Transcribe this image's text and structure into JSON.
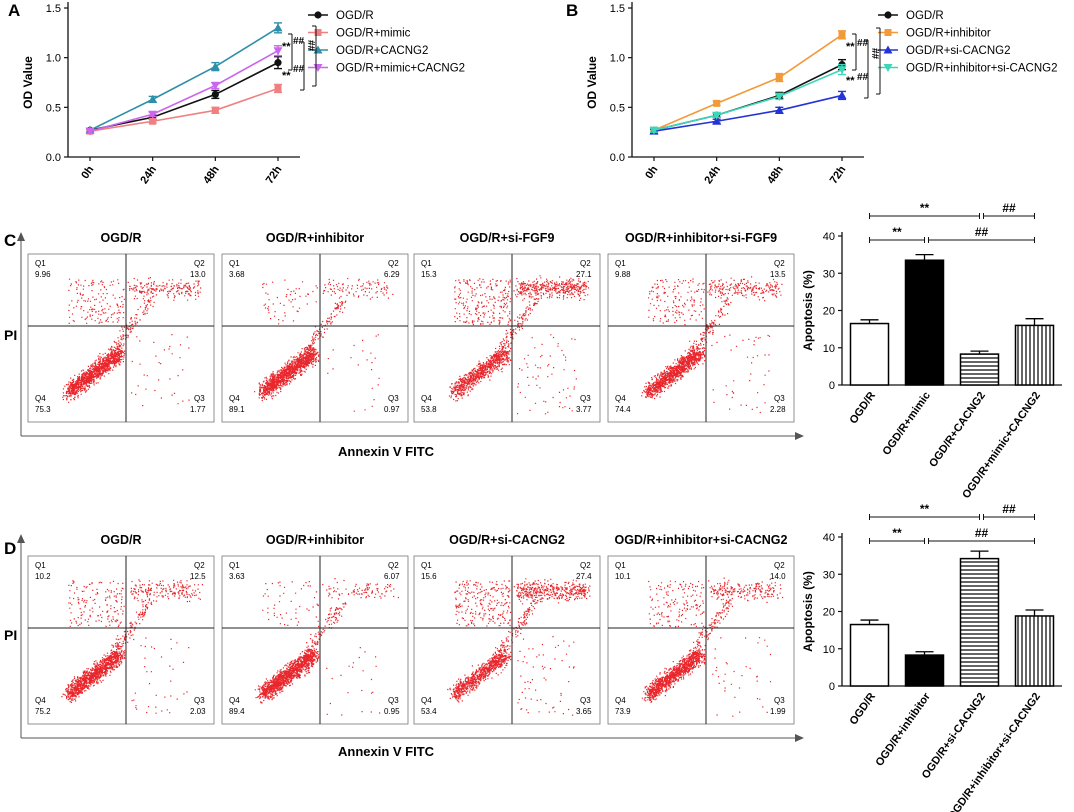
{
  "panel_letters": {
    "a": "A",
    "b": "B",
    "c": "C",
    "d": "D"
  },
  "flow_axes": {
    "pi": "PI",
    "annexin": "Annexin V  FITC"
  },
  "stats_marks": {
    "star2": "**",
    "hash2": "##"
  },
  "colors": {
    "dots": "#e8262b",
    "black": "#111111",
    "teal": "#2e8fa8",
    "salmon": "#f08080",
    "violet": "#cc66ee",
    "orange": "#f39a38",
    "blue": "#2433d6",
    "aqua": "#3dd6b8"
  },
  "chart_data": [
    {
      "id": "A",
      "type": "line",
      "ylabel": "OD Value",
      "ylim": [
        0.0,
        1.5
      ],
      "yticks": [
        "0.0",
        "0.5",
        "1.0",
        "1.5"
      ],
      "categories": [
        "0h",
        "24h",
        "48h",
        "72h"
      ],
      "series": [
        {
          "name": "OGD/R",
          "color": "#111111",
          "marker": "circle",
          "values": [
            0.27,
            0.4,
            0.63,
            0.95
          ],
          "err": [
            0.02,
            0.02,
            0.04,
            0.06
          ]
        },
        {
          "name": "OGD/R+mimic",
          "color": "#f08080",
          "marker": "square",
          "values": [
            0.26,
            0.36,
            0.47,
            0.69
          ],
          "err": [
            0.02,
            0.02,
            0.03,
            0.04
          ]
        },
        {
          "name": "OGD/R+CACNG2",
          "color": "#2e8fa8",
          "marker": "triangle",
          "values": [
            0.27,
            0.58,
            0.91,
            1.3
          ],
          "err": [
            0.02,
            0.03,
            0.04,
            0.05
          ]
        },
        {
          "name": "OGD/R+mimic+CACNG2",
          "color": "#cc66ee",
          "marker": "triangle-down",
          "values": [
            0.26,
            0.43,
            0.72,
            1.07
          ],
          "err": [
            0.02,
            0.02,
            0.03,
            0.05
          ]
        }
      ],
      "annotations": [
        "**",
        "**",
        "##",
        "##",
        "##"
      ]
    },
    {
      "id": "B",
      "type": "line",
      "ylabel": "OD Value",
      "ylim": [
        0.0,
        1.5
      ],
      "yticks": [
        "0.0",
        "0.5",
        "1.0",
        "1.5"
      ],
      "categories": [
        "0h",
        "24h",
        "48h",
        "72h"
      ],
      "series": [
        {
          "name": "OGD/R",
          "color": "#111111",
          "marker": "circle",
          "values": [
            0.27,
            0.42,
            0.62,
            0.93
          ],
          "err": [
            0.02,
            0.02,
            0.03,
            0.05
          ]
        },
        {
          "name": "OGD/R+inhibitor",
          "color": "#f39a38",
          "marker": "square",
          "values": [
            0.27,
            0.54,
            0.8,
            1.23
          ],
          "err": [
            0.02,
            0.02,
            0.04,
            0.04
          ]
        },
        {
          "name": "OGD/R+si-CACNG2",
          "color": "#2433d6",
          "marker": "triangle",
          "values": [
            0.26,
            0.36,
            0.47,
            0.62
          ],
          "err": [
            0.02,
            0.02,
            0.03,
            0.04
          ]
        },
        {
          "name": "OGD/R+inhibitor+si-CACNG2",
          "color": "#3dd6b8",
          "marker": "triangle-down",
          "values": [
            0.27,
            0.42,
            0.61,
            0.88
          ],
          "err": [
            0.02,
            0.02,
            0.03,
            0.05
          ]
        }
      ],
      "annotations": [
        "**",
        "**",
        "##",
        "##",
        "##"
      ]
    },
    {
      "id": "C-flow",
      "type": "scatter",
      "plots": [
        {
          "title": "OGD/R",
          "q1": "9.96",
          "q2": "13.0",
          "q3": "1.77",
          "q4": "75.3"
        },
        {
          "title": "OGD/R+inhibitor",
          "q1": "3.68",
          "q2": "6.29",
          "q3": "0.97",
          "q4": "89.1"
        },
        {
          "title": "OGD/R+si-FGF9",
          "q1": "15.3",
          "q2": "27.1",
          "q3": "3.77",
          "q4": "53.8"
        },
        {
          "title": "OGD/R+inhibitor+si-FGF9",
          "q1": "9.88",
          "q2": "13.5",
          "q3": "2.28",
          "q4": "74.4"
        }
      ],
      "ylabel": "PI",
      "xlabel": "Annexin V  FITC"
    },
    {
      "id": "C-bar",
      "type": "bar",
      "ylabel": "Apoptosis (%)",
      "ylim": [
        0,
        40
      ],
      "yticks": [
        "0",
        "10",
        "20",
        "30",
        "40"
      ],
      "categories": [
        "OGD/R",
        "OGD/R+mimic",
        "OGD/R+CACNG2",
        "OGD/R+mimic+CACNG2"
      ],
      "values": [
        16.5,
        33.5,
        8.3,
        16.0
      ],
      "err": [
        1.0,
        1.5,
        0.8,
        1.8
      ],
      "fills": [
        "open",
        "solid",
        "hlines",
        "vlines"
      ],
      "brackets": [
        {
          "from": 0,
          "to": 2,
          "label": "**",
          "row": 1
        },
        {
          "from": 2,
          "to": 3,
          "label": "##",
          "row": 1
        },
        {
          "from": 0,
          "to": 1,
          "label": "**",
          "row": 2
        },
        {
          "from": 1,
          "to": 3,
          "label": "##",
          "row": 2
        }
      ]
    },
    {
      "id": "D-flow",
      "type": "scatter",
      "plots": [
        {
          "title": "OGD/R",
          "q1": "10.2",
          "q2": "12.5",
          "q3": "2.03",
          "q4": "75.2"
        },
        {
          "title": "OGD/R+inhibitor",
          "q1": "3.63",
          "q2": "6.07",
          "q3": "0.95",
          "q4": "89.4"
        },
        {
          "title": "OGD/R+si-CACNG2",
          "q1": "15.6",
          "q2": "27.4",
          "q3": "3.65",
          "q4": "53.4"
        },
        {
          "title": "OGD/R+inhibitor+si-CACNG2",
          "q1": "10.1",
          "q2": "14.0",
          "q3": "1.99",
          "q4": "73.9"
        }
      ],
      "ylabel": "PI",
      "xlabel": "Annexin V  FITC"
    },
    {
      "id": "D-bar",
      "type": "bar",
      "ylabel": "Apoptosis (%)",
      "ylim": [
        0,
        40
      ],
      "yticks": [
        "0",
        "10",
        "20",
        "30",
        "40"
      ],
      "categories": [
        "OGD/R",
        "OGD/R+inhibitor",
        "OGD/R+si-CACNG2",
        "OGD/R+inhibitor+si-CACNG2"
      ],
      "values": [
        16.5,
        8.3,
        34.2,
        18.8
      ],
      "err": [
        1.2,
        0.9,
        2.0,
        1.6
      ],
      "fills": [
        "open",
        "solid",
        "hlines",
        "vlines"
      ],
      "brackets": [
        {
          "from": 0,
          "to": 2,
          "label": "**",
          "row": 1
        },
        {
          "from": 2,
          "to": 3,
          "label": "##",
          "row": 1
        },
        {
          "from": 0,
          "to": 1,
          "label": "**",
          "row": 2
        },
        {
          "from": 1,
          "to": 3,
          "label": "##",
          "row": 2
        }
      ]
    }
  ]
}
